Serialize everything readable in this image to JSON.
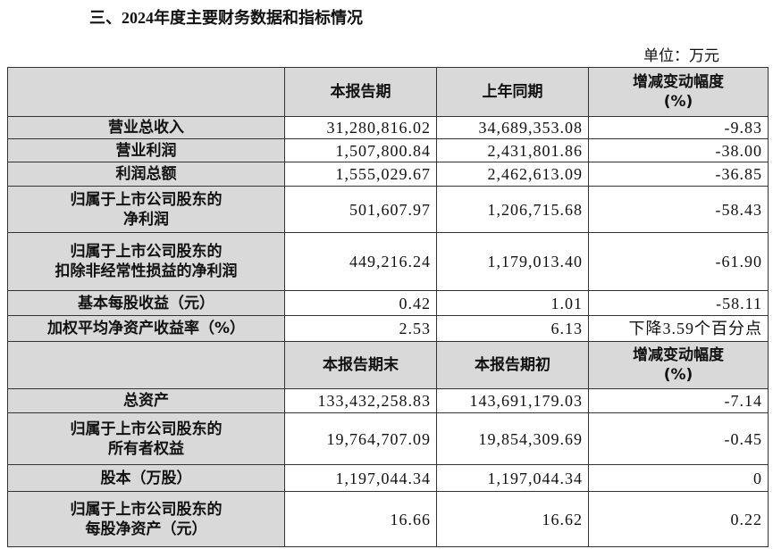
{
  "title": "三、2024年度主要财务数据和指标情况",
  "unit": "单位：万元",
  "header1": [
    "",
    "本报告期",
    "上年同期",
    "增减变动幅度\n(%)"
  ],
  "rows1": [
    [
      "营业总收入",
      "31,280,816.02",
      "34,689,353.08",
      "-9.83"
    ],
    [
      "营业利润",
      "1,507,800.84",
      "2,431,801.86",
      "-38.00"
    ],
    [
      "利润总额",
      "1,555,029.67",
      "2,462,613.09",
      "-36.85"
    ],
    [
      "归属于上市公司股东的\n净利润",
      "501,607.97",
      "1,206,715.68",
      "-58.43"
    ],
    [
      "归属于上市公司股东的\n扣除非经常性损益的净利润",
      "449,216.24",
      "1,179,013.40",
      "-61.90"
    ],
    [
      "基本每股收益（元）",
      "0.42",
      "1.01",
      "-58.11"
    ],
    [
      "加权平均净资产收益率（%）",
      "2.53",
      "6.13",
      "下降3.59个百分点"
    ]
  ],
  "header2": [
    "",
    "本报告期末",
    "本报告期初",
    "增减变动幅度\n(%)"
  ],
  "rows2": [
    [
      "总资产",
      "133,432,258.83",
      "143,691,179.03",
      "-7.14"
    ],
    [
      "归属于上市公司股东的\n所有者权益",
      "19,764,707.09",
      "19,854,309.69",
      "-0.45"
    ],
    [
      "股本（万股）",
      "1,197,044.34",
      "1,197,044.34",
      "0"
    ],
    [
      "归属于上市公司股东的\n每股净资产（元）",
      "16.66",
      "16.62",
      "0.22"
    ]
  ]
}
